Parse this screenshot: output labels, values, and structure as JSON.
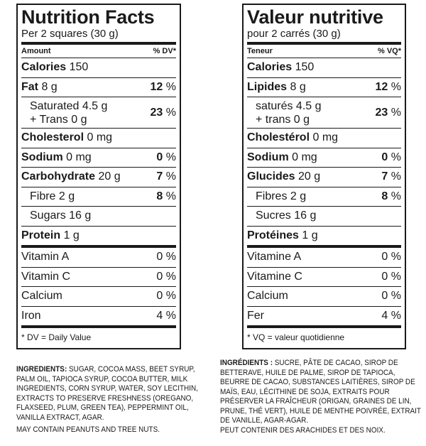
{
  "en": {
    "title": "Nutrition Facts",
    "serving": "Per 2 squares (30 g)",
    "amount": "Amount",
    "dv": "% DV*",
    "calories_label": "Calories",
    "calories_value": "150",
    "fat_label": "Fat",
    "fat_amt": "8 g",
    "fat_pct": "12",
    "sat_label": "Saturated 4.5 g",
    "trans_label": "+ Trans 0 g",
    "sat_pct": "23",
    "chol_label": "Cholesterol",
    "chol_amt": "0 mg",
    "sodium_label": "Sodium",
    "sodium_amt": "0 mg",
    "sodium_pct": "0",
    "carb_label": "Carbohydrate",
    "carb_amt": "20 g",
    "carb_pct": "7",
    "fibre_label": "Fibre",
    "fibre_amt": "2 g",
    "fibre_pct": "8",
    "sugars_label": "Sugars",
    "sugars_amt": "16 g",
    "protein_label": "Protein",
    "protein_amt": "1 g",
    "vita_label": "Vitamin A",
    "vita_pct": "0 %",
    "vitc_label": "Vitamin C",
    "vitc_pct": "0 %",
    "calcium_label": "Calcium",
    "calcium_pct": "0 %",
    "iron_label": "Iron",
    "iron_pct": "4 %",
    "footnote": "* DV = Daily Value",
    "ingredients_head": "INGREDIENTS:",
    "ingredients": "SUGAR, COCOA MASS, BEET SYRUP, PALM OIL, TAPIOCA SYRUP, COCOA BUTTER, MILK INGREDIENTS, CORN SYRUP, WATER, SOY LECITHIN, EXTRACTS TO PRESERVE FRESHNESS (OREGANO, FLAXSEED, PLUM, GREEN TEA), PEPPERMINT OIL, VANILLA EXTRACT, AGAR.",
    "allergy": "MAY CONTAIN PEANUTS AND TREE NUTS."
  },
  "fr": {
    "title": "Valeur nutritive",
    "serving": "pour 2 carrés (30 g)",
    "amount": "Teneur",
    "dv": "% VQ*",
    "calories_label": "Calories",
    "calories_value": "150",
    "fat_label": "Lipides",
    "fat_amt": "8 g",
    "fat_pct": "12",
    "sat_label": "saturés 4.5 g",
    "trans_label": "+ trans 0 g",
    "sat_pct": "23",
    "chol_label": "Cholestérol",
    "chol_amt": "0 mg",
    "sodium_label": "Sodium",
    "sodium_amt": "0 mg",
    "sodium_pct": "0",
    "carb_label": "Glucides",
    "carb_amt": "20 g",
    "carb_pct": "7",
    "fibre_label": "Fibres",
    "fibre_amt": "2 g",
    "fibre_pct": "8",
    "sugars_label": "Sucres",
    "sugars_amt": "16 g",
    "protein_label": "Protéines",
    "protein_amt": "1 g",
    "vita_label": "Vitamine A",
    "vita_pct": "0 %",
    "vitc_label": "Vitamine C",
    "vitc_pct": "0 %",
    "calcium_label": "Calcium",
    "calcium_pct": "0 %",
    "iron_label": "Fer",
    "iron_pct": "4 %",
    "footnote": "* VQ = valeur quotidienne",
    "ingredients_head": "INGRÉDIENTS :",
    "ingredients": "SUCRE, PÂTE DE CACAO, SIROP DE BETTERAVE, HUILE DE PALME, SIROP DE TAPIOCA, BEURRE DE CACAO, SUBSTANCES LAITIÈRES, SIROP DE MAÏS, EAU, LÉCITHINE DE SOJA, EXTRAITS POUR PRÉSERVER LA FRAÎCHEUR (ORIGAN, GRAINES DE LIN, PRUNE, THÉ VERT), HUILE DE MENTHE POIVRÉE, EXTRAIT DE VANILLE, AGAR-AGAR.",
    "allergy": "PEUT CONTENIR DES ARACHIDES ET DES NOIX."
  },
  "pct_sign": "%"
}
